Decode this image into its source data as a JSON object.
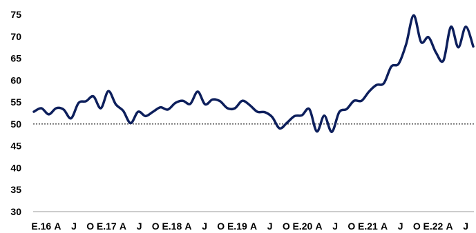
{
  "chart_data": {
    "type": "line",
    "ylim": [
      30,
      75
    ],
    "yticks": [
      30,
      35,
      40,
      45,
      50,
      55,
      60,
      65,
      70,
      75
    ],
    "xtick_labels": [
      "E.16",
      "A",
      "J",
      "O",
      "E.17",
      "A",
      "J",
      "O",
      "E.18",
      "A",
      "J",
      "O",
      "E.19",
      "A",
      "J",
      "O",
      "E.20",
      "A",
      "J",
      "O",
      "E.21",
      "A",
      "J",
      "O",
      "E.22",
      "A",
      "J"
    ],
    "reference_line": {
      "y": 50,
      "style": "dotted"
    },
    "grid": false,
    "series": [
      {
        "values": [
          52.8,
          53.6,
          52.2,
          53.6,
          53.3,
          51.3,
          54.8,
          55.2,
          56.3,
          53.6,
          57.5,
          54.5,
          53.0,
          50.2,
          52.8,
          51.8,
          52.8,
          53.8,
          53.3,
          54.8,
          55.3,
          54.6,
          57.4,
          54.5,
          55.6,
          55.2,
          53.6,
          53.6,
          55.3,
          54.3,
          52.8,
          52.7,
          51.6,
          49.0,
          50.3,
          51.8,
          52.0,
          53.4,
          48.3,
          51.9,
          48.2,
          52.7,
          53.4,
          55.3,
          55.3,
          57.4,
          58.9,
          59.3,
          63.1,
          63.8,
          68.3,
          74.8,
          68.7,
          69.8,
          66.3,
          64.5,
          72.2,
          67.5,
          72.2,
          67.7
        ],
        "color": "#0d1f5c"
      }
    ]
  }
}
